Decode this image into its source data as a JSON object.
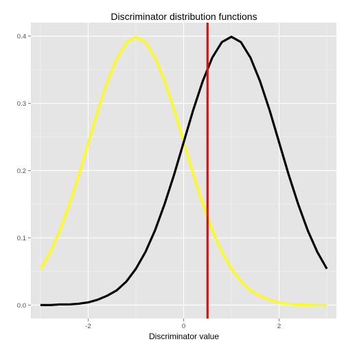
{
  "chart_data": {
    "type": "line",
    "title": "Discriminator distribution functions",
    "xlabel": "Discriminator value",
    "ylabel": "",
    "xlim": [
      -3.2,
      3.2
    ],
    "ylim": [
      -0.02,
      0.42
    ],
    "x_ticks": [
      -2,
      0,
      2
    ],
    "x_tick_labels": [
      "-2",
      "0",
      "2"
    ],
    "y_ticks": [
      0.0,
      0.1,
      0.2,
      0.3,
      0.4
    ],
    "y_tick_labels": [
      "0.0",
      "0.1",
      "0.2",
      "0.3",
      "0.4"
    ],
    "grid": true,
    "legend": "none",
    "background_color": "#e5e5e5",
    "grid_color": "#ffffff",
    "series": [
      {
        "color": "#ffff00",
        "x": [
          -3.0,
          -2.8,
          -2.6,
          -2.4,
          -2.2,
          -2.0,
          -1.8,
          -1.6,
          -1.4,
          -1.2,
          -1.0,
          -0.8,
          -0.6,
          -0.4,
          -0.2,
          0.0,
          0.2,
          0.4,
          0.6,
          0.8,
          1.0,
          1.2,
          1.4,
          1.6,
          1.8,
          2.0,
          2.2,
          2.4,
          2.6,
          2.8,
          3.0
        ],
        "y": [
          0.054,
          0.079,
          0.111,
          0.15,
          0.194,
          0.242,
          0.29,
          0.333,
          0.368,
          0.391,
          0.399,
          0.391,
          0.368,
          0.333,
          0.29,
          0.242,
          0.194,
          0.15,
          0.111,
          0.079,
          0.054,
          0.035,
          0.022,
          0.014,
          0.008,
          0.004,
          0.002,
          0.001,
          0.001,
          0.0,
          0.0
        ]
      },
      {
        "color": "#000000",
        "x": [
          -3.0,
          -2.8,
          -2.6,
          -2.4,
          -2.2,
          -2.0,
          -1.8,
          -1.6,
          -1.4,
          -1.2,
          -1.0,
          -0.8,
          -0.6,
          -0.4,
          -0.2,
          0.0,
          0.2,
          0.4,
          0.6,
          0.8,
          1.0,
          1.2,
          1.4,
          1.6,
          1.8,
          2.0,
          2.2,
          2.4,
          2.6,
          2.8,
          3.0
        ],
        "y": [
          0.0,
          0.0,
          0.001,
          0.001,
          0.002,
          0.004,
          0.008,
          0.014,
          0.022,
          0.035,
          0.054,
          0.079,
          0.111,
          0.15,
          0.194,
          0.242,
          0.29,
          0.333,
          0.368,
          0.391,
          0.399,
          0.391,
          0.368,
          0.333,
          0.29,
          0.242,
          0.194,
          0.15,
          0.111,
          0.079,
          0.054
        ]
      }
    ],
    "vline": {
      "x": 0.5,
      "color": "#ff0000"
    }
  }
}
